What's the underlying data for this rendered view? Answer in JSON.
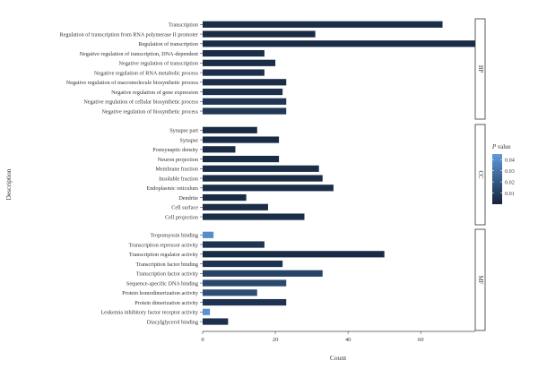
{
  "chart_data": {
    "type": "bar",
    "orientation": "horizontal",
    "xlabel": "Count",
    "ylabel": "Description",
    "xlim": [
      0,
      75
    ],
    "xticks": [
      0,
      20,
      40,
      60
    ],
    "grid": false,
    "color_scale": {
      "title_italic": "P",
      "title_rest": " value",
      "min": 0.0,
      "max": 0.045,
      "ticks": [
        0.01,
        0.02,
        0.03,
        0.04
      ],
      "tick_labels": [
        "0.01",
        "0.02",
        "0.03",
        "0.04"
      ],
      "color_low": "#14233a",
      "color_high": "#5f9bdc",
      "legend_position": "right"
    },
    "panels": [
      {
        "label": "BP",
        "bars": [
          {
            "category": "Transcription",
            "count": 66,
            "p_value": 0.004
          },
          {
            "category": "Regulation of transcription from RNA polymerase II promoter",
            "count": 31,
            "p_value": 0.003
          },
          {
            "category": "Regulation of transcription",
            "count": 75,
            "p_value": 0.003
          },
          {
            "category": "Negative regulation of transcription, DNA-dependent",
            "count": 17,
            "p_value": 0.004
          },
          {
            "category": "Negative regulation of transcription",
            "count": 20,
            "p_value": 0.004
          },
          {
            "category": "Negative regulation of RNA metabolic process",
            "count": 17,
            "p_value": 0.005
          },
          {
            "category": "Negative regulation of macromolecule biosynthetic process",
            "count": 23,
            "p_value": 0.004
          },
          {
            "category": "Negative regulation of gene expression",
            "count": 22,
            "p_value": 0.005
          },
          {
            "category": "Negative regulation of cellular biosynthetic process",
            "count": 23,
            "p_value": 0.007
          },
          {
            "category": "Negative regulation of biosynthetic process",
            "count": 23,
            "p_value": 0.008
          }
        ]
      },
      {
        "label": "CC",
        "bars": [
          {
            "category": "Synapse part",
            "count": 15,
            "p_value": 0.003
          },
          {
            "category": "Synapse",
            "count": 21,
            "p_value": 0.003
          },
          {
            "category": "Postsynaptic density",
            "count": 9,
            "p_value": 0.003
          },
          {
            "category": "Neuron projection",
            "count": 21,
            "p_value": 0.003
          },
          {
            "category": "Membrane fraction",
            "count": 32,
            "p_value": 0.004
          },
          {
            "category": "Insoluble fraction",
            "count": 33,
            "p_value": 0.004
          },
          {
            "category": "Endoplasmic reticulum",
            "count": 36,
            "p_value": 0.004
          },
          {
            "category": "Dendrite",
            "count": 12,
            "p_value": 0.003
          },
          {
            "category": "Cell surface",
            "count": 18,
            "p_value": 0.004
          },
          {
            "category": "Cell projection",
            "count": 28,
            "p_value": 0.004
          }
        ]
      },
      {
        "label": "MF",
        "bars": [
          {
            "category": "Tropomyosin binding",
            "count": 3,
            "p_value": 0.04
          },
          {
            "category": "Transcription repressor activity",
            "count": 17,
            "p_value": 0.006
          },
          {
            "category": "Transcription regulator activity",
            "count": 50,
            "p_value": 0.003
          },
          {
            "category": "Transcription factor binding",
            "count": 22,
            "p_value": 0.006
          },
          {
            "category": "Transcription factor activity",
            "count": 33,
            "p_value": 0.012
          },
          {
            "category": "Sequence-specific DNA binding",
            "count": 23,
            "p_value": 0.014
          },
          {
            "category": "Protein homodimerization activity",
            "count": 15,
            "p_value": 0.016
          },
          {
            "category": "Protein dimerization activity",
            "count": 23,
            "p_value": 0.006
          },
          {
            "category": "Leukemia inhibitory factor receptor activity",
            "count": 2,
            "p_value": 0.042
          },
          {
            "category": "Diacylglycerol binding",
            "count": 7,
            "p_value": 0.005
          }
        ]
      }
    ]
  }
}
